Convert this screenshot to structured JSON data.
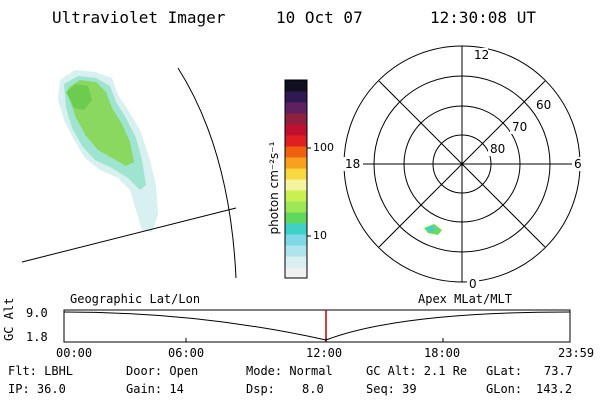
{
  "header": {
    "instrument": "Ultraviolet Imager",
    "date": "10 Oct 07",
    "time": "12:30:08 UT"
  },
  "colorbar": {
    "unit_label": "photon cm⁻²s⁻¹",
    "tick_labels": [
      "100",
      "10"
    ],
    "colors": [
      "#f0f0f0",
      "#d8f0f0",
      "#b0e4ec",
      "#7fd8e6",
      "#3fd0c8",
      "#60d860",
      "#9ee858",
      "#c8f050",
      "#f4f4a0",
      "#f8d840",
      "#f8a020",
      "#f06010",
      "#e02020",
      "#c01030",
      "#902040",
      "#602060",
      "#301850",
      "#101020"
    ]
  },
  "polar_plot": {
    "hour_labels": {
      "top": "12",
      "left": "18",
      "right": "6",
      "bottom": "0"
    },
    "lat_labels": [
      "60",
      "70",
      "80"
    ]
  },
  "timeline": {
    "left_title": "Geographic Lat/Lon",
    "right_title": "Apex MLat/MLT",
    "axis_title": "GC Alt",
    "y_ticks": [
      "9.0",
      "1.8"
    ],
    "x_ticks": [
      "00:00",
      "06:00",
      "12:00",
      "18:00",
      "23:59"
    ],
    "cursor_color": "#c00000"
  },
  "info": {
    "filter": "Flt: LBHL",
    "ip": "IP: 36.0",
    "door": "Door: Open",
    "gain": "Gain: 14",
    "mode": "Mode: Normal",
    "dsp_label": "Dsp:",
    "dsp_value": "8.0",
    "gc_alt": "GC Alt: 2.1 Re",
    "seq": "Seq: 39",
    "glat_label": "GLat:",
    "glat_value": "73.7",
    "glon_label": "GLon:",
    "glon_value": "143.2"
  }
}
